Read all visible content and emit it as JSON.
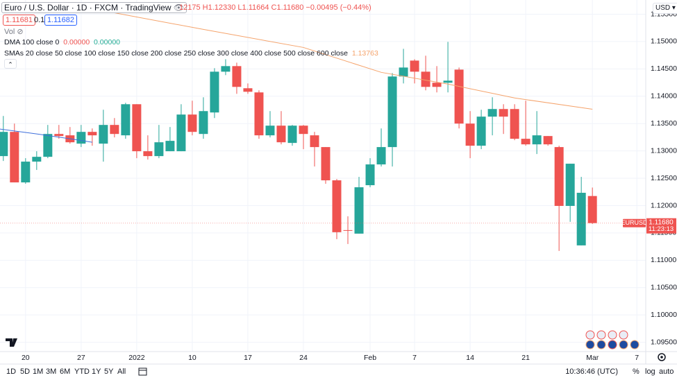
{
  "header": {
    "symbol": "Euro / U.S. Dollar · 1D · FXCM · TradingView",
    "ohlc": "12175 H1.12330 L1.11664 C1.11680 −0.00495 (−0.44%)",
    "sell": "1.11681",
    "spread": "0.1",
    "buy": "1.11682",
    "vol": "Vol",
    "dma": "DMA 100 close 0",
    "dma_v1": "0.00000",
    "dma_v2": "0.00000",
    "smas": "SMAs 20 close 50 close 100 close 150 close 200 close 250 close 300 close 400 close 500 close 600 close",
    "smas_value": "1.13763",
    "currency": "USD"
  },
  "toolbar": {
    "ranges": [
      "1D",
      "5D",
      "1M",
      "3M",
      "6M",
      "YTD",
      "1Y",
      "5Y",
      "All"
    ],
    "clock": "10:36:46 (UTC)",
    "percent": "%",
    "log": "log",
    "auto": "auto"
  },
  "chart_data": {
    "type": "candlestick",
    "open": [
      1.12905,
      1.13348,
      1.12424,
      1.12804,
      1.12892,
      1.1331,
      1.13285,
      1.13133,
      1.13348,
      1.13133,
      1.13475,
      1.13285,
      1.13854,
      1.12994,
      1.12905,
      1.12994,
      1.12994,
      1.13665,
      1.1331,
      1.13703,
      1.14449,
      1.14551,
      1.14146,
      1.1407,
      1.13285,
      1.13462,
      1.13146,
      1.13462,
      1.13285,
      1.1307,
      1.12462,
      1.11551,
      1.11487,
      1.12373,
      1.12753,
      1.1307,
      1.14361,
      1.14652,
      1.14449,
      1.14247,
      1.14247,
      1.14487,
      1.135,
      1.13095,
      1.13627,
      1.13766,
      1.13766,
      1.13222,
      1.1312,
      1.13272,
      1.1307,
      1.11994,
      1.11272,
      1.12175
    ],
    "high": [
      1.13639,
      1.135,
      1.12867,
      1.12994,
      1.13475,
      1.13475,
      1.13437,
      1.13475,
      1.13411,
      1.13753,
      1.13601,
      1.1388,
      1.13854,
      1.13285,
      1.13475,
      1.13437,
      1.13854,
      1.13918,
      1.13981,
      1.14513,
      1.14677,
      1.14614,
      1.14234,
      1.14108,
      1.13728,
      1.13728,
      1.13475,
      1.13475,
      1.13348,
      1.1307,
      1.12487,
      1.11804,
      1.12525,
      1.12867,
      1.13411,
      1.14424,
      1.14867,
      1.14677,
      1.14741,
      1.14551,
      1.14994,
      1.14525,
      1.13728,
      1.13753,
      1.13981,
      1.13854,
      1.13854,
      1.13918,
      1.13728,
      1.13272,
      1.13095,
      1.12766,
      1.12525,
      1.1233
    ],
    "low": [
      1.12816,
      1.12424,
      1.12399,
      1.12652,
      1.12867,
      1.13222,
      1.13133,
      1.1307,
      1.13095,
      1.12804,
      1.13247,
      1.13222,
      1.12867,
      1.12842,
      1.12867,
      1.12994,
      1.12994,
      1.13285,
      1.13222,
      1.13601,
      1.14386,
      1.14044,
      1.14044,
      1.13222,
      1.13247,
      1.1312,
      1.13095,
      1.13032,
      1.12715,
      1.12399,
      1.11386,
      1.11297,
      1.11487,
      1.12335,
      1.12715,
      1.12715,
      1.14234,
      1.14234,
      1.14108,
      1.1407,
      1.1407,
      1.13411,
      1.12867,
      1.13032,
      1.13285,
      1.1331,
      1.13196,
      1.13095,
      1.12943,
      1.13095,
      1.11171,
      1.11703,
      1.11272,
      1.11664
    ],
    "close": [
      1.13348,
      1.12424,
      1.12804,
      1.12892,
      1.1331,
      1.13272,
      1.13158,
      1.13348,
      1.13285,
      1.13475,
      1.1331,
      1.13854,
      1.12994,
      1.12905,
      1.13158,
      1.13184,
      1.13665,
      1.13348,
      1.13728,
      1.14449,
      1.14551,
      1.14171,
      1.14082,
      1.13285,
      1.13462,
      1.13158,
      1.13462,
      1.1331,
      1.1307,
      1.12462,
      1.11513,
      1.11538,
      1.12335,
      1.12753,
      1.1307,
      1.14361,
      1.14525,
      1.14449,
      1.14171,
      1.14171,
      1.14285,
      1.135,
      1.13095,
      1.13627,
      1.13766,
      1.13627,
      1.13222,
      1.1312,
      1.13285,
      1.1312,
      1.11994,
      1.12766,
      1.12234,
      1.1168
    ],
    "up_color": "#26a69a",
    "down_color": "#ef5350",
    "overlays": [
      {
        "color": "#f5a36b",
        "x": [
          9,
          18,
          27,
          34,
          40,
          46,
          53
        ],
        "values": [
          1.15563,
          1.15222,
          1.14892,
          1.14437,
          1.14222,
          1.13968,
          1.13763
        ]
      },
      {
        "color": "#3e6fdc",
        "x": [
          -0.3,
          3,
          6,
          8
        ],
        "values": [
          1.13399,
          1.1331,
          1.13222,
          1.13158
        ]
      }
    ],
    "last_price": {
      "label": "EURUSD",
      "value_label": "1.11680",
      "countdown": "11:23:13",
      "color": "#ef5350"
    },
    "xlim": [
      -0.3,
      57.8
    ],
    "xticks": [
      {
        "value": 2,
        "label": "20"
      },
      {
        "value": 7,
        "label": "27"
      },
      {
        "value": 12,
        "label": "2022"
      },
      {
        "value": 17,
        "label": "10"
      },
      {
        "value": 22,
        "label": "17"
      },
      {
        "value": 27,
        "label": "24"
      },
      {
        "value": 33,
        "label": "Feb"
      },
      {
        "value": 37,
        "label": "7"
      },
      {
        "value": 42,
        "label": "14"
      },
      {
        "value": 47,
        "label": "21"
      },
      {
        "value": 53,
        "label": "Mar"
      },
      {
        "value": 57,
        "label": "7"
      }
    ],
    "ylim": [
      1.0933,
      1.1576
    ],
    "yticks": [
      {
        "value": 1.155,
        "label": "1.15500"
      },
      {
        "value": 1.15,
        "label": "1.15000"
      },
      {
        "value": 1.145,
        "label": "1.14500"
      },
      {
        "value": 1.14,
        "label": "1.14000"
      },
      {
        "value": 1.135,
        "label": "1.13500"
      },
      {
        "value": 1.13,
        "label": "1.13000"
      },
      {
        "value": 1.125,
        "label": "1.12500"
      },
      {
        "value": 1.12,
        "label": "1.12000"
      },
      {
        "value": 1.115,
        "label": "1.11500"
      },
      {
        "value": 1.11,
        "label": "1.11000"
      },
      {
        "value": 1.105,
        "label": "1.10500"
      },
      {
        "value": 1.1,
        "label": "1.10000"
      },
      {
        "value": 1.095,
        "label": "1.09500"
      }
    ],
    "grid": true
  }
}
